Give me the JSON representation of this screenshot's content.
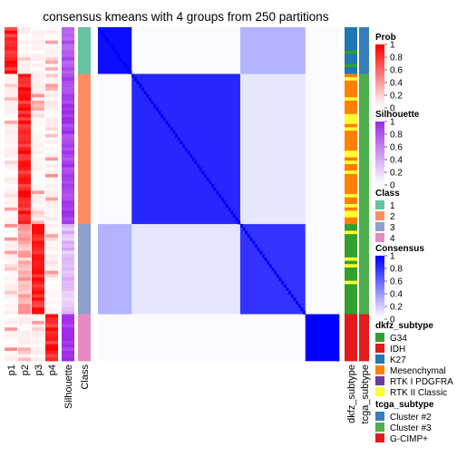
{
  "chart_data": {
    "type": "heatmap",
    "title": "consensus kmeans with 4 groups from 250 partitions",
    "track_labels": [
      "p1",
      "p2",
      "p3",
      "p4",
      "Silhouette",
      "Class"
    ],
    "subtype_labels": [
      "dkfz_subtype",
      "tcga_subtype"
    ],
    "n_samples": 100,
    "groups": [
      {
        "class": 1,
        "n": 14
      },
      {
        "class": 2,
        "n": 45
      },
      {
        "class": 3,
        "n": 27
      },
      {
        "class": 4,
        "n": 14
      }
    ],
    "group_color": {
      "1": "#66C2A5",
      "2": "#FC8D62",
      "3": "#8DA0CB",
      "4": "#E78AC3"
    },
    "consensus_within": [
      0.95,
      0.85,
      0.8,
      1.0
    ],
    "consensus_between_1_3": 0.3,
    "consensus_between_2_3": 0.1,
    "silhouette_mean": [
      0.8,
      0.9,
      0.3,
      0.95
    ],
    "legends": [
      {
        "title": "Prob",
        "type": "gradient",
        "ticks": [
          "1",
          "0.8",
          "0.6",
          "0.4",
          "0.2",
          "0"
        ],
        "low": "#FFFFFF",
        "high": "#FF0000"
      },
      {
        "title": "Silhouette",
        "type": "gradient",
        "ticks": [
          "1",
          "0.8",
          "0.6",
          "0.4",
          "0.2",
          "0"
        ],
        "low": "#FFFFFF",
        "high": "#9E2BE8"
      },
      {
        "title": "Class",
        "type": "discrete",
        "items": [
          {
            "label": "1",
            "color": "#66C2A5"
          },
          {
            "label": "2",
            "color": "#FC8D62"
          },
          {
            "label": "3",
            "color": "#8DA0CB"
          },
          {
            "label": "4",
            "color": "#E78AC3"
          }
        ]
      },
      {
        "title": "Consensus",
        "type": "gradient",
        "ticks": [
          "1",
          "0.8",
          "0.6",
          "0.4",
          "0.2",
          "0"
        ],
        "low": "#FFFFFF",
        "high": "#0000FF"
      },
      {
        "title": "dkfz_subtype",
        "type": "discrete",
        "items": [
          {
            "label": "G34",
            "color": "#33A02C"
          },
          {
            "label": "IDH",
            "color": "#E31A1C"
          },
          {
            "label": "K27",
            "color": "#1F78B4"
          },
          {
            "label": "Mesenchymal",
            "color": "#FF7F00"
          },
          {
            "label": "RTK I PDGFRA",
            "color": "#6A3D9A"
          },
          {
            "label": "RTK II Classic",
            "color": "#FFFF33"
          }
        ]
      },
      {
        "title": "tcga_subtype",
        "type": "discrete",
        "items": [
          {
            "label": "Cluster #2",
            "color": "#377EB8"
          },
          {
            "label": "Cluster #3",
            "color": "#4DAF4A"
          },
          {
            "label": "G-CIMP+",
            "color": "#E41A1C"
          }
        ]
      }
    ]
  }
}
